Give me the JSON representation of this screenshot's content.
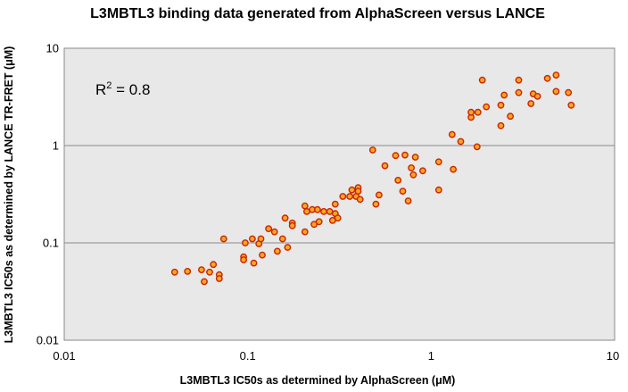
{
  "chart_data": {
    "type": "scatter",
    "title": "L3MBTL3 binding data generated from AlphaScreen versus LANCE",
    "xlabel": "L3MBTL3 IC50s as determined by AlphaScreen (μM)",
    "ylabel": "L3MBTL3 IC50s as determined by LANCE TR-FRET  (μM)",
    "x_scale": "log",
    "y_scale": "log",
    "xlim": [
      0.01,
      10
    ],
    "ylim": [
      0.01,
      10
    ],
    "x_ticks": [
      "0.01",
      "0.1",
      "1",
      "10"
    ],
    "y_ticks": [
      "0.01",
      "0.1",
      "1",
      "10"
    ],
    "grid": "horizontal",
    "plot_background": "#e8e8e8",
    "marker_fill": "#f5a623",
    "marker_edge": "#cc2200",
    "annotation": {
      "prefix": "R",
      "sup": "2",
      "suffix": " = 0.8"
    },
    "points": [
      [
        0.04,
        0.05
      ],
      [
        0.047,
        0.051
      ],
      [
        0.056,
        0.053
      ],
      [
        0.058,
        0.04
      ],
      [
        0.062,
        0.05
      ],
      [
        0.065,
        0.06
      ],
      [
        0.07,
        0.047
      ],
      [
        0.07,
        0.043
      ],
      [
        0.074,
        0.11
      ],
      [
        0.095,
        0.072
      ],
      [
        0.095,
        0.067
      ],
      [
        0.097,
        0.1
      ],
      [
        0.106,
        0.11
      ],
      [
        0.108,
        0.062
      ],
      [
        0.115,
        0.098
      ],
      [
        0.118,
        0.11
      ],
      [
        0.12,
        0.075
      ],
      [
        0.13,
        0.14
      ],
      [
        0.14,
        0.13
      ],
      [
        0.145,
        0.082
      ],
      [
        0.155,
        0.11
      ],
      [
        0.16,
        0.18
      ],
      [
        0.165,
        0.09
      ],
      [
        0.175,
        0.16
      ],
      [
        0.175,
        0.15
      ],
      [
        0.205,
        0.24
      ],
      [
        0.21,
        0.21
      ],
      [
        0.205,
        0.13
      ],
      [
        0.225,
        0.22
      ],
      [
        0.23,
        0.155
      ],
      [
        0.24,
        0.22
      ],
      [
        0.245,
        0.165
      ],
      [
        0.26,
        0.21
      ],
      [
        0.28,
        0.21
      ],
      [
        0.29,
        0.17
      ],
      [
        0.3,
        0.25
      ],
      [
        0.3,
        0.2
      ],
      [
        0.31,
        0.18
      ],
      [
        0.33,
        0.3
      ],
      [
        0.36,
        0.3
      ],
      [
        0.37,
        0.35
      ],
      [
        0.39,
        0.3
      ],
      [
        0.4,
        0.37
      ],
      [
        0.4,
        0.34
      ],
      [
        0.41,
        0.28
      ],
      [
        0.48,
        0.9
      ],
      [
        0.5,
        0.25
      ],
      [
        0.52,
        0.31
      ],
      [
        0.56,
        0.62
      ],
      [
        0.64,
        0.79
      ],
      [
        0.66,
        0.44
      ],
      [
        0.7,
        0.34
      ],
      [
        0.72,
        0.8
      ],
      [
        0.75,
        0.27
      ],
      [
        0.78,
        0.59
      ],
      [
        0.8,
        0.5
      ],
      [
        0.82,
        0.76
      ],
      [
        0.9,
        0.55
      ],
      [
        1.1,
        0.68
      ],
      [
        1.1,
        0.35
      ],
      [
        1.3,
        1.3
      ],
      [
        1.32,
        0.57
      ],
      [
        1.45,
        1.1
      ],
      [
        1.65,
        1.95
      ],
      [
        1.65,
        2.2
      ],
      [
        1.78,
        0.97
      ],
      [
        1.8,
        2.2
      ],
      [
        1.9,
        4.7
      ],
      [
        2.0,
        2.5
      ],
      [
        2.4,
        2.6
      ],
      [
        2.4,
        1.6
      ],
      [
        2.5,
        3.3
      ],
      [
        2.7,
        2.0
      ],
      [
        3.0,
        4.7
      ],
      [
        3.0,
        3.5
      ],
      [
        3.5,
        2.7
      ],
      [
        3.6,
        3.4
      ],
      [
        3.8,
        3.2
      ],
      [
        4.3,
        4.9
      ],
      [
        4.8,
        5.3
      ],
      [
        4.8,
        3.6
      ],
      [
        5.6,
        3.5
      ],
      [
        5.8,
        2.6
      ]
    ]
  }
}
